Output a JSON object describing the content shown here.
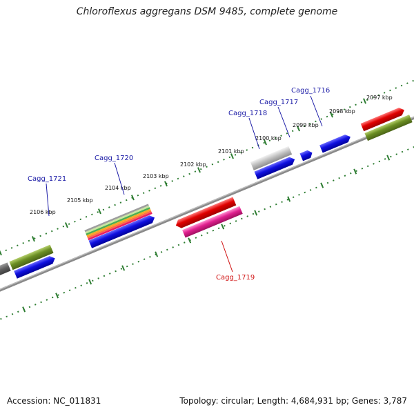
{
  "title": "Chloroflexus aggregans DSM 9485, complete genome",
  "accession_text": "Accession: NC_011831",
  "topology_text": "Topology: circular; Length: 4,684,931 bp; Genes: 3,787",
  "scale_ticks": [
    "2097 kbp",
    "2098 kbp",
    "2099 kbp",
    "2100 kbp",
    "2101 kbp",
    "2102 kbp",
    "2103 kbp",
    "2104 kbp",
    "2105 kbp",
    "2106 kbp"
  ],
  "gene_labels": {
    "cagg_1716": "Cagg_1716",
    "cagg_1717": "Cagg_1717",
    "cagg_1718": "Cagg_1718",
    "cagg_1719": "Cagg_1719",
    "cagg_1720": "Cagg_1720",
    "cagg_1721": "Cagg_1721"
  },
  "colors": {
    "backbone": "#7f7f7f",
    "tick_dots": "#2e7d32",
    "label_blue": "#1a1aa6",
    "label_red": "#d01010",
    "cds_blue": "#1010e0",
    "cds_red": "#e00000",
    "cds_pink": "#e0208f",
    "cds_olive": "#6b8e23",
    "cds_gray": "#bdbdbd",
    "cds_dark_gray": "#6a6a6a"
  }
}
